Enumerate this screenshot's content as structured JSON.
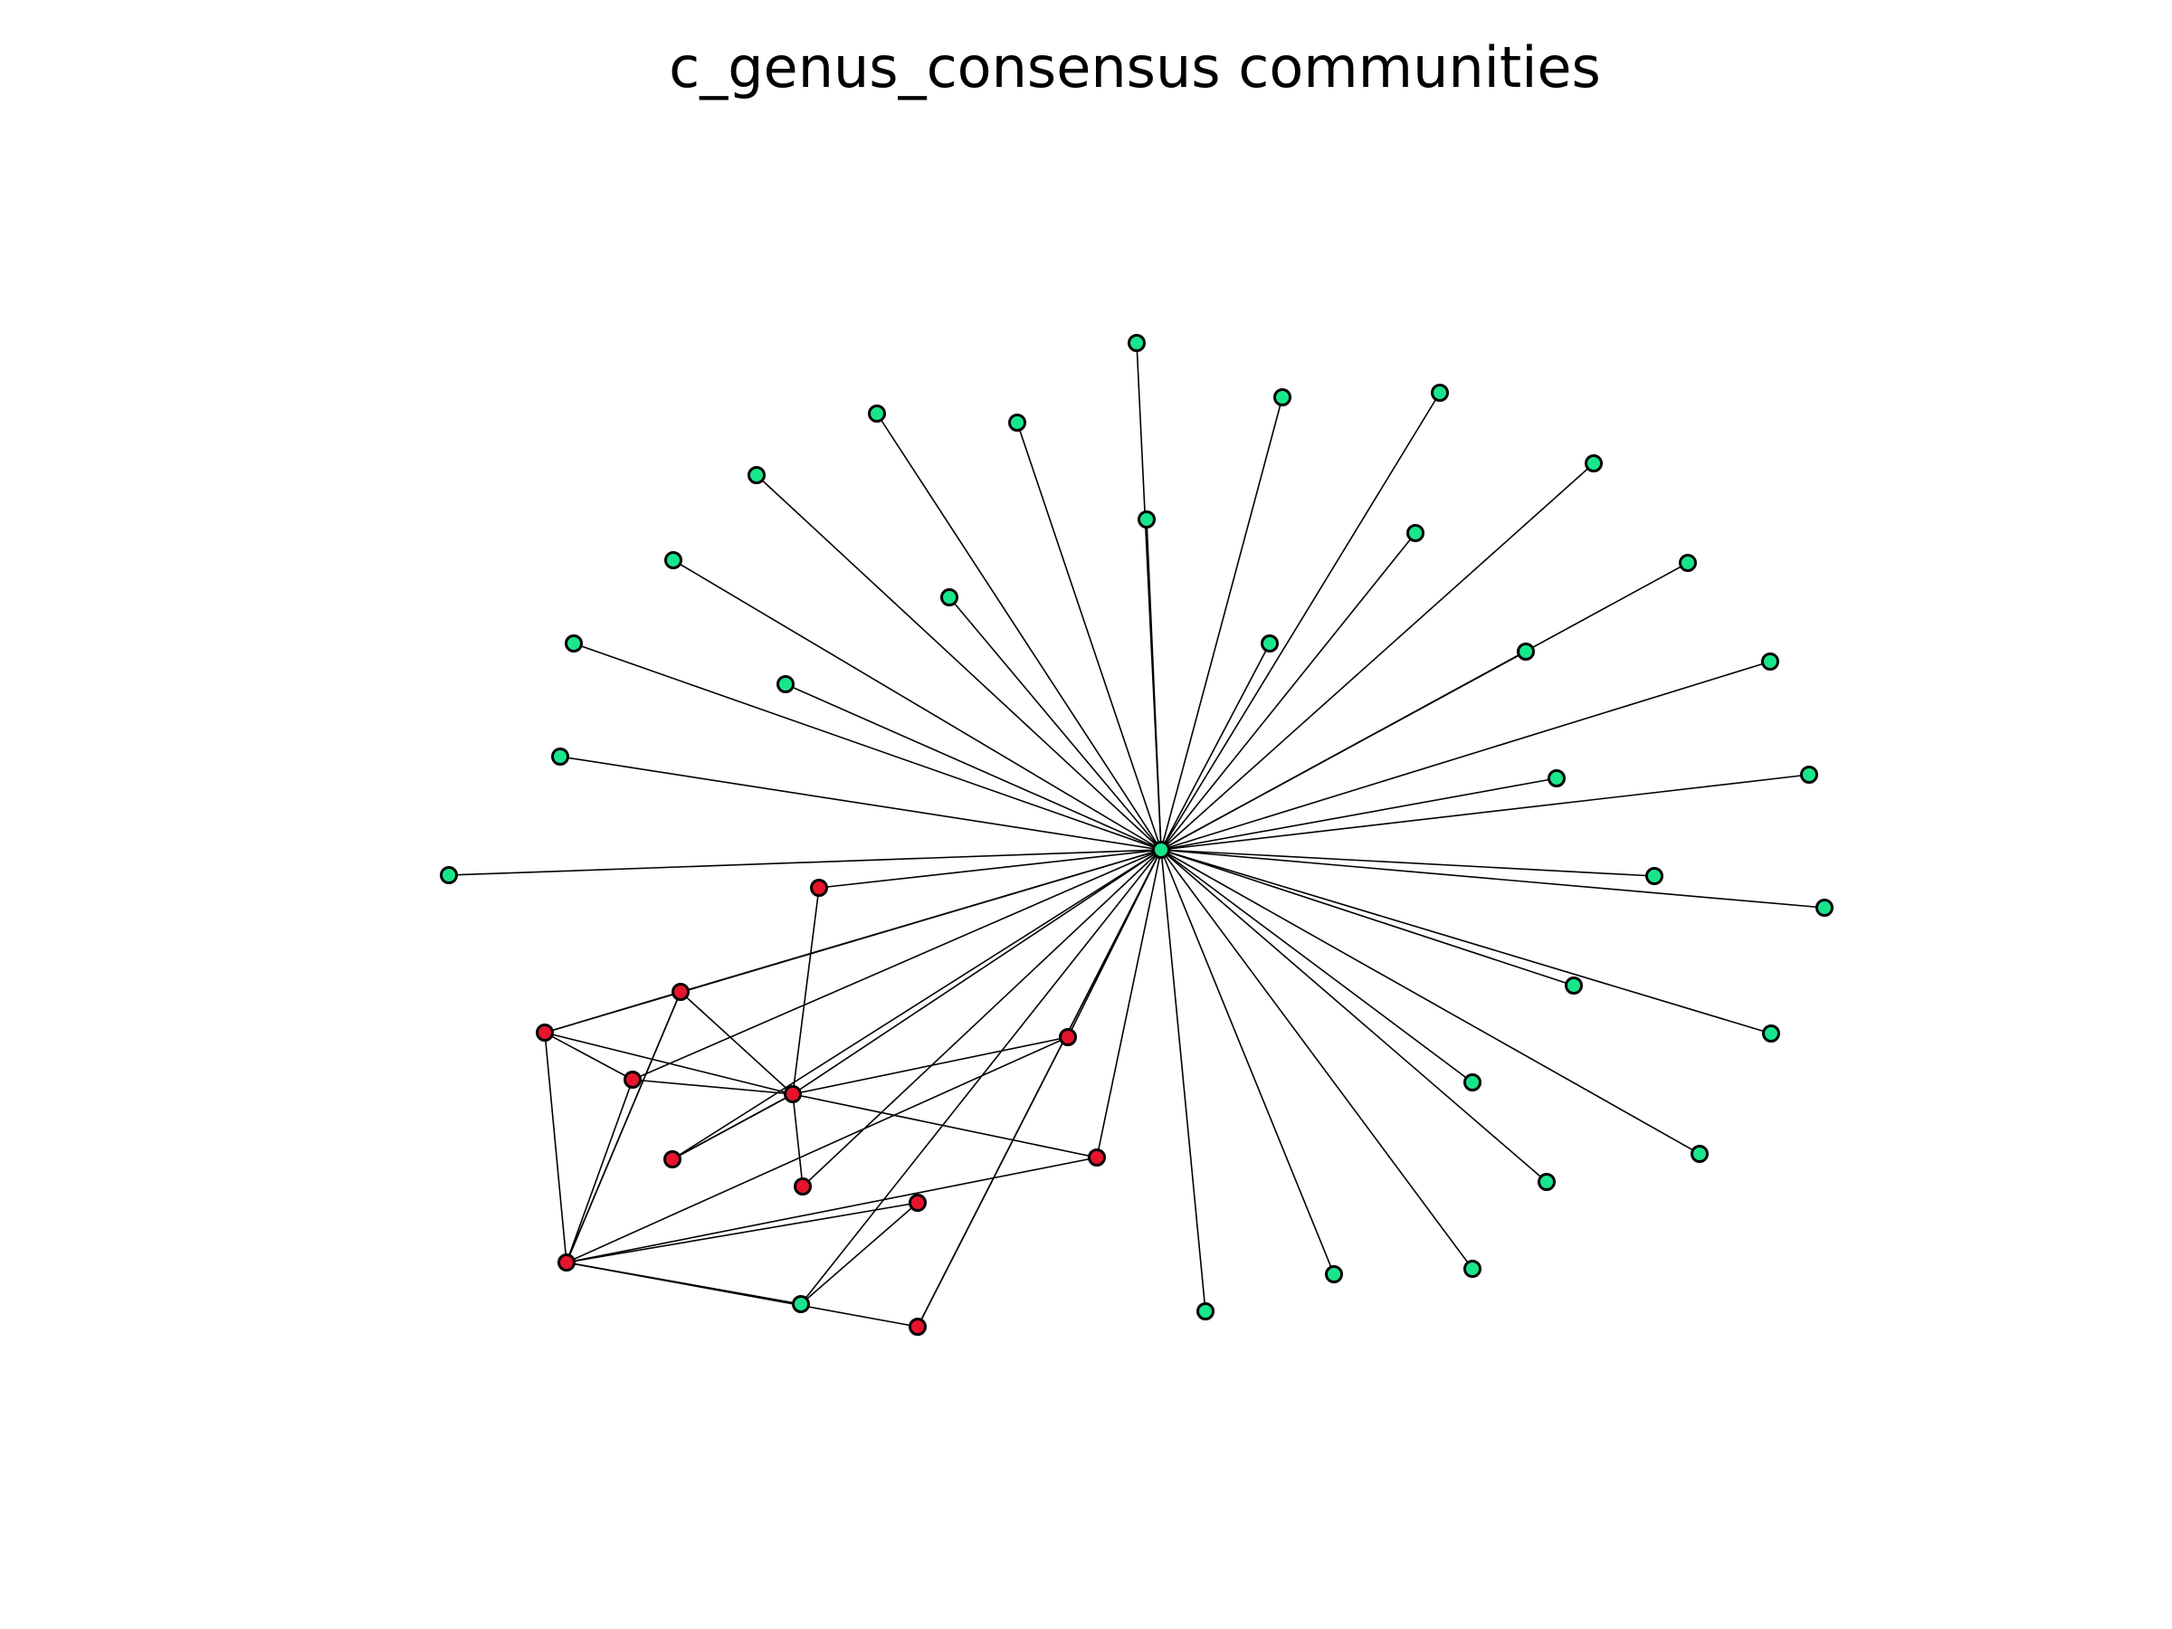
{
  "figure": {
    "title": "c_genus_consensus communities"
  },
  "colors": {
    "community_green": "#19e68c",
    "community_red": "#e6142d",
    "edge": "#000000",
    "node_outline": "#000000"
  },
  "graph": {
    "hub": "G0",
    "nodes": [
      {
        "id": "G0",
        "community": "green"
      },
      {
        "id": "G1",
        "community": "green"
      },
      {
        "id": "G2",
        "community": "green"
      },
      {
        "id": "G3",
        "community": "green"
      },
      {
        "id": "G4",
        "community": "green"
      },
      {
        "id": "G5",
        "community": "green"
      },
      {
        "id": "G6",
        "community": "green"
      },
      {
        "id": "G7",
        "community": "green"
      },
      {
        "id": "G8",
        "community": "green"
      },
      {
        "id": "G9",
        "community": "green"
      },
      {
        "id": "G10",
        "community": "green"
      },
      {
        "id": "G11",
        "community": "green"
      },
      {
        "id": "G12",
        "community": "green"
      },
      {
        "id": "G13",
        "community": "green"
      },
      {
        "id": "G14",
        "community": "green"
      },
      {
        "id": "G15",
        "community": "green"
      },
      {
        "id": "G16",
        "community": "green"
      },
      {
        "id": "G17",
        "community": "green"
      },
      {
        "id": "G18",
        "community": "green"
      },
      {
        "id": "G19",
        "community": "green"
      },
      {
        "id": "G20",
        "community": "green"
      },
      {
        "id": "G21",
        "community": "green"
      },
      {
        "id": "G22",
        "community": "green"
      },
      {
        "id": "G23",
        "community": "green"
      },
      {
        "id": "G24",
        "community": "green"
      },
      {
        "id": "G25",
        "community": "green"
      },
      {
        "id": "G26",
        "community": "green"
      },
      {
        "id": "G27",
        "community": "green"
      },
      {
        "id": "G28",
        "community": "green"
      },
      {
        "id": "G29",
        "community": "green"
      },
      {
        "id": "G30",
        "community": "green"
      },
      {
        "id": "G31",
        "community": "green"
      },
      {
        "id": "R1",
        "community": "red"
      },
      {
        "id": "R2",
        "community": "red"
      },
      {
        "id": "R3",
        "community": "red"
      },
      {
        "id": "R4",
        "community": "red"
      },
      {
        "id": "R5",
        "community": "red"
      },
      {
        "id": "R6",
        "community": "red"
      },
      {
        "id": "R7",
        "community": "red"
      },
      {
        "id": "R8",
        "community": "red"
      },
      {
        "id": "R9",
        "community": "red"
      },
      {
        "id": "R10",
        "community": "red"
      },
      {
        "id": "R11",
        "community": "red"
      },
      {
        "id": "R12",
        "community": "red"
      }
    ],
    "edges": [
      [
        "G0",
        "G1"
      ],
      [
        "G0",
        "G2"
      ],
      [
        "G0",
        "G3"
      ],
      [
        "G0",
        "G4"
      ],
      [
        "G0",
        "G5"
      ],
      [
        "G0",
        "G6"
      ],
      [
        "G0",
        "G7"
      ],
      [
        "G0",
        "G8"
      ],
      [
        "G0",
        "G9"
      ],
      [
        "G0",
        "G10"
      ],
      [
        "G0",
        "G11"
      ],
      [
        "G0",
        "G12"
      ],
      [
        "G0",
        "G13"
      ],
      [
        "G0",
        "G14"
      ],
      [
        "G0",
        "G15"
      ],
      [
        "G0",
        "G16"
      ],
      [
        "G0",
        "G17"
      ],
      [
        "G0",
        "G18"
      ],
      [
        "G0",
        "G19"
      ],
      [
        "G0",
        "G20"
      ],
      [
        "G0",
        "G21"
      ],
      [
        "G0",
        "G22"
      ],
      [
        "G0",
        "G23"
      ],
      [
        "G0",
        "G24"
      ],
      [
        "G0",
        "G25"
      ],
      [
        "G0",
        "G26"
      ],
      [
        "G0",
        "G27"
      ],
      [
        "G0",
        "G28"
      ],
      [
        "G0",
        "G29"
      ],
      [
        "G0",
        "G30"
      ],
      [
        "G0",
        "G31"
      ],
      [
        "G0",
        "R1"
      ],
      [
        "G0",
        "R2"
      ],
      [
        "G0",
        "R3"
      ],
      [
        "G0",
        "R4"
      ],
      [
        "G0",
        "R5"
      ],
      [
        "G0",
        "R6"
      ],
      [
        "G0",
        "R7"
      ],
      [
        "G0",
        "R9"
      ],
      [
        "G0",
        "R10"
      ],
      [
        "G0",
        "R12"
      ],
      [
        "R1",
        "R4"
      ],
      [
        "R2",
        "R3"
      ],
      [
        "R2",
        "R4"
      ],
      [
        "R2",
        "R8"
      ],
      [
        "R3",
        "R4"
      ],
      [
        "R3",
        "R5"
      ],
      [
        "R3",
        "R8"
      ],
      [
        "R4",
        "R5"
      ],
      [
        "R4",
        "R6"
      ],
      [
        "R4",
        "R7"
      ],
      [
        "R4",
        "R9"
      ],
      [
        "R4",
        "R10"
      ],
      [
        "R5",
        "R8"
      ],
      [
        "R6",
        "R8"
      ],
      [
        "R7",
        "R8"
      ],
      [
        "R8",
        "R11"
      ],
      [
        "R8",
        "G31"
      ],
      [
        "G31",
        "R11"
      ],
      [
        "R2",
        "R8"
      ]
    ]
  }
}
